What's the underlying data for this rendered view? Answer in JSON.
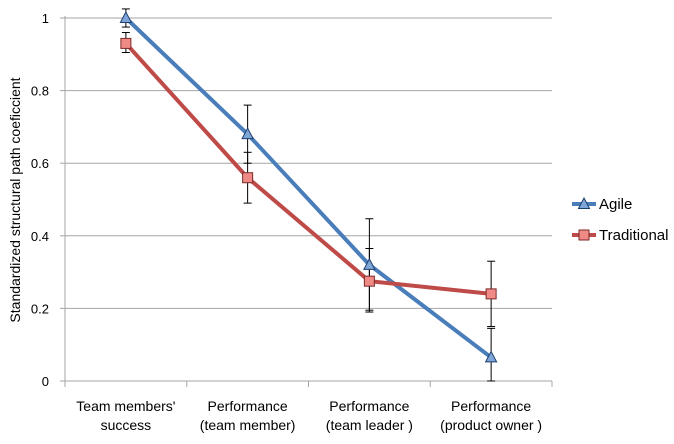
{
  "chart_data": {
    "type": "line",
    "title": "",
    "xlabel": "",
    "ylabel": "Standardized structural path coeficcient",
    "ylim": [
      0,
      1
    ],
    "yticks": [
      0,
      0.2,
      0.4,
      0.6,
      0.8,
      1
    ],
    "ytick_labels": [
      "0",
      "0.2",
      "0.4",
      "0.6",
      "0.8",
      "1"
    ],
    "grid": "horizontal",
    "legend_position": "right",
    "categories": [
      [
        "Team members'",
        "success"
      ],
      [
        "Performance",
        "(team member)"
      ],
      [
        "Performance",
        "(team leader )"
      ],
      [
        "Performance",
        "(product owner )"
      ]
    ],
    "series": [
      {
        "name": "Agile",
        "marker": "triangle",
        "color": "#4a7ebb",
        "marker_fill": "#7ea6d9",
        "values": [
          1.0,
          0.68,
          0.32,
          0.065
        ],
        "error_low": [
          0.975,
          0.6,
          0.195,
          0.0
        ],
        "error_high": [
          1.025,
          0.76,
          0.447,
          0.145
        ]
      },
      {
        "name": "Traditional",
        "marker": "square",
        "color": "#be4b48",
        "marker_fill": "#f08a86",
        "values": [
          0.93,
          0.56,
          0.275,
          0.24
        ],
        "error_low": [
          0.905,
          0.49,
          0.19,
          0.15
        ],
        "error_high": [
          0.96,
          0.63,
          0.365,
          0.33
        ]
      }
    ]
  }
}
